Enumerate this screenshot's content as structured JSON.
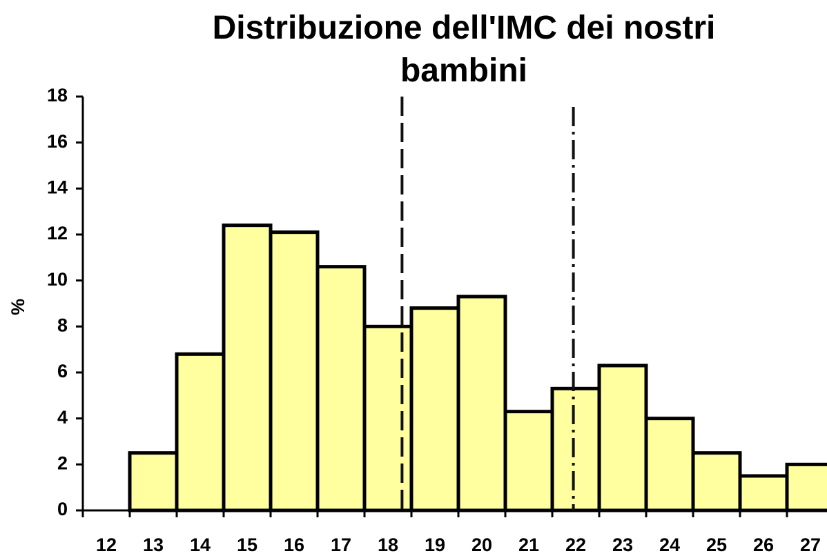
{
  "chart_data": {
    "type": "bar",
    "title": "Distribuzione dell'IMC dei nostri bambini",
    "y_label": "%",
    "categories": [
      "12",
      "13",
      "14",
      "15",
      "16",
      "17",
      "18",
      "19",
      "20",
      "21",
      "22",
      "23",
      "24",
      "25",
      "26",
      "27"
    ],
    "values": [
      0,
      2.5,
      6.8,
      12.4,
      12.1,
      10.6,
      8.0,
      8.8,
      9.3,
      4.3,
      5.3,
      6.3,
      4.0,
      2.5,
      1.5,
      2.0
    ],
    "color": "#ffffa0",
    "ylim": [
      0,
      18
    ],
    "yticks": [
      0,
      2,
      4,
      6,
      8,
      10,
      12,
      14,
      16,
      18
    ],
    "reference_lines": [
      {
        "x": 18.3,
        "style": "dashed"
      },
      {
        "x": 21.95,
        "style": "dash-dot"
      }
    ]
  }
}
